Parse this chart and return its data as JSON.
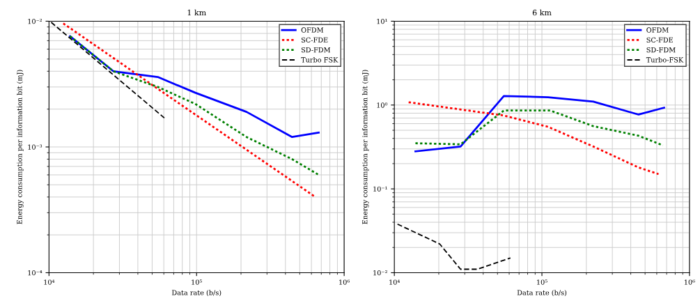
{
  "chart_data": [
    {
      "type": "line",
      "title": "1 km",
      "xlabel": "Data rate (b/s)",
      "ylabel": "Energy consumption per information bit (mJ)",
      "log": "xy",
      "grid": true,
      "legend": "top right",
      "xlim": [
        10000,
        1000000
      ],
      "xticks": [
        {
          "value": 10000,
          "label": "10⁴"
        },
        {
          "value": 100000,
          "label": "10⁵"
        },
        {
          "value": 1000000,
          "label": "10⁶"
        }
      ],
      "ylim": [
        0.0001,
        0.01
      ],
      "yticks": [
        {
          "value": 0.0001,
          "label": "10⁻⁴"
        },
        {
          "value": 0.001,
          "label": "10⁻³"
        },
        {
          "value": 0.01,
          "label": "10⁻²"
        }
      ],
      "series": [
        {
          "name": "OFDM",
          "color": "#0000ff",
          "line_style": "solid",
          "x": [
            13900,
            27300,
            54600,
            98000,
            218000,
            444000,
            672000
          ],
          "values": [
            0.0076,
            0.004,
            0.0036,
            0.0027,
            0.0019,
            0.0012,
            0.0013
          ]
        },
        {
          "name": "SC-FDE",
          "color": "#ff0000",
          "line_style": "dotted",
          "x": [
            12500,
            27300,
            54600,
            638000
          ],
          "values": [
            0.0096,
            0.0051,
            0.0029,
            0.0004
          ]
        },
        {
          "name": "SD-FDM",
          "color": "#008000",
          "line_style": "dotted",
          "x": [
            13900,
            27300,
            54600,
            98000,
            218000,
            444000,
            672000
          ],
          "values": [
            0.0076,
            0.004,
            0.003,
            0.0022,
            0.0012,
            0.0008,
            0.0006
          ]
        },
        {
          "name": "Turbo FSK",
          "color": "#000000",
          "line_style": "dashed",
          "x": [
            10350,
            60500
          ],
          "values": [
            0.0098,
            0.0017
          ]
        }
      ]
    },
    {
      "type": "line",
      "title": "6 km",
      "xlabel": "Data rate (b/s)",
      "ylabel": "Energy consumption per information bit (mJ)",
      "log": "xy",
      "grid": true,
      "legend": "top right",
      "xlim": [
        10000,
        1000000
      ],
      "xticks": [
        {
          "value": 10000,
          "label": "10⁴"
        },
        {
          "value": 100000,
          "label": "10⁵"
        },
        {
          "value": 1000000,
          "label": "10⁶"
        }
      ],
      "ylim": [
        0.01,
        10
      ],
      "yticks": [
        {
          "value": 0.01,
          "label": "10⁻²"
        },
        {
          "value": 0.1,
          "label": "10⁻¹"
        },
        {
          "value": 1,
          "label": "10⁰"
        },
        {
          "value": 10,
          "label": "10¹"
        }
      ],
      "series": [
        {
          "name": "OFDM",
          "color": "#0000ff",
          "line_style": "solid",
          "x": [
            13900,
            28100,
            55200,
            110000,
            223000,
            452000,
            673000
          ],
          "values": [
            0.28,
            0.32,
            1.28,
            1.24,
            1.1,
            0.77,
            0.93
          ]
        },
        {
          "name": "SC-FDE",
          "color": "#ff0000",
          "line_style": "dotted",
          "x": [
            12500,
            55200,
            110000,
            223000,
            452000,
            617000
          ],
          "values": [
            1.08,
            0.75,
            0.55,
            0.32,
            0.18,
            0.15
          ]
        },
        {
          "name": "SD-FDM",
          "color": "#008000",
          "line_style": "dotted",
          "x": [
            13900,
            28100,
            55200,
            114000,
            223000,
            452000,
            661000
          ],
          "values": [
            0.35,
            0.34,
            0.86,
            0.86,
            0.56,
            0.43,
            0.33
          ]
        },
        {
          "name": "Turbo-FSK",
          "color": "#000000",
          "line_style": "dashed",
          "x": [
            10500,
            20300,
            28100,
            36500,
            61200
          ],
          "values": [
            0.038,
            0.022,
            0.011,
            0.011,
            0.015
          ]
        }
      ]
    }
  ]
}
